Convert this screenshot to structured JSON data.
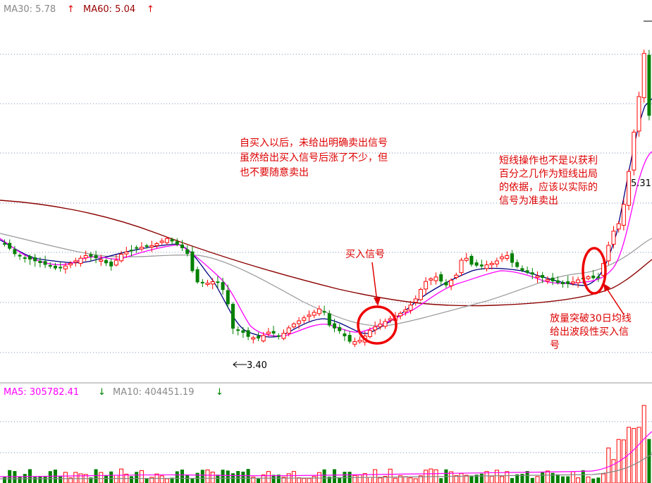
{
  "chart_data": {
    "type": "candlestick",
    "price_panel": {
      "ma_legend": [
        {
          "name": "MA30",
          "value": "5.78",
          "arrow": "↑",
          "color": "#888888"
        },
        {
          "name": "MA60",
          "value": "5.04",
          "arrow": "↑",
          "color": "#990000"
        }
      ],
      "low_marker": "3.40",
      "high_marker": "5.31",
      "annotations": {
        "top_note": [
          "自买入以后，未给出明确卖出信号",
          "虽然给出买入信号后涨了不少，但",
          "也不要随意卖出"
        ],
        "right_note": [
          "短线操作也不是以获利",
          "百分之几作为短线出局",
          "的依据，应该以实际的",
          "信号为准卖出"
        ],
        "buy_signal": "买入信号",
        "breakout_note": [
          "放量突破30日均线",
          "给出波段性买入信",
          "号"
        ]
      },
      "colors": {
        "up": "#ff0000",
        "down": "#008000",
        "ma5": "#ff00ff",
        "ma10": "#000080",
        "ma30": "#999999",
        "ma60": "#8b0000"
      }
    },
    "volume_panel": {
      "ma_legend": [
        {
          "name": "MA5",
          "value": "305782.41",
          "arrow": "↓",
          "color": "#ff00ff"
        },
        {
          "name": "MA10",
          "value": "404451.19",
          "arrow": "↓",
          "color": "#888888"
        }
      ]
    },
    "arrow_colors": {
      "up": "#dd0000",
      "down": "#008000"
    }
  }
}
